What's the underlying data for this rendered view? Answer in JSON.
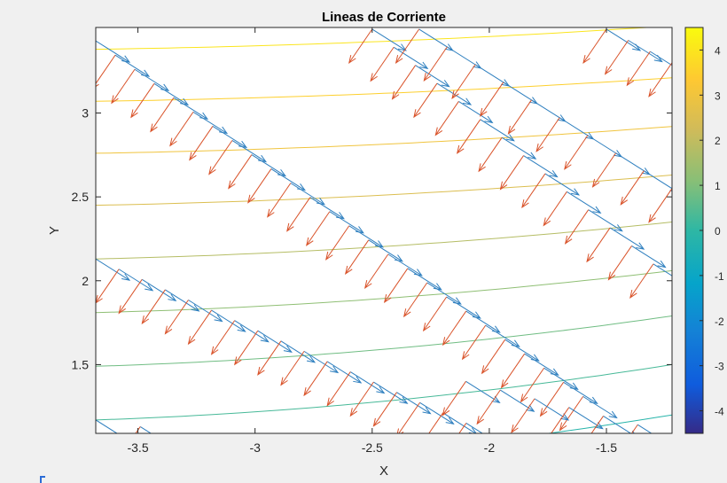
{
  "chart_data": {
    "type": "quiver",
    "title": "Lineas de Corriente",
    "xlabel": "X",
    "ylabel": "Y",
    "xlim": [
      -3.68,
      -1.22
    ],
    "ylim": [
      1.09,
      3.51
    ],
    "xticks": [
      -3.5,
      -3,
      -2.5,
      -2,
      -1.5
    ],
    "xtick_labels": [
      "-3.5",
      "-3",
      "-2.5",
      "-2",
      "-1.5"
    ],
    "yticks": [
      1.5,
      2,
      2.5,
      3
    ],
    "ytick_labels": [
      "1.5",
      "2",
      "2.5",
      "3"
    ],
    "grid": false,
    "colorbar": {
      "range": [
        -4.5,
        4.5
      ],
      "ticks": [
        4,
        3,
        2,
        1,
        0,
        -1,
        -2,
        -3,
        -4
      ],
      "tick_labels": [
        "4",
        "3",
        "2",
        "1",
        "0",
        "-1",
        "-2",
        "-3",
        "-4"
      ],
      "colormap": "parula"
    },
    "contour_lines": [
      {
        "y_left": 3.38,
        "y_right": 3.52,
        "level": 4.0
      },
      {
        "y_left": 3.07,
        "y_right": 3.21,
        "level": 3.5
      },
      {
        "y_left": 2.76,
        "y_right": 2.92,
        "level": 3.0
      },
      {
        "y_left": 2.45,
        "y_right": 2.63,
        "level": 2.5
      },
      {
        "y_left": 2.13,
        "y_right": 2.35,
        "level": 1.8
      },
      {
        "y_left": 1.81,
        "y_right": 2.06,
        "level": 1.2
      },
      {
        "y_left": 1.49,
        "y_right": 1.79,
        "level": 0.8
      },
      {
        "y_left": 1.17,
        "y_right": 1.5,
        "level": 0.3
      },
      {
        "y_left": 0.86,
        "y_right": 1.2,
        "level": -0.2
      }
    ],
    "quiver_bands": [
      {
        "x0": -3.68,
        "y0": 3.43,
        "x1": -1.6,
        "y1": 1.31,
        "n": 26
      },
      {
        "x0": -2.5,
        "y0": 3.5,
        "x1": -1.3,
        "y1": 2.1,
        "n": 14
      },
      {
        "x0": -2.3,
        "y0": 3.5,
        "x1": -1.22,
        "y1": 2.55,
        "n": 10
      },
      {
        "x0": -1.5,
        "y0": 3.5,
        "x1": -1.22,
        "y1": 3.3,
        "n": 4
      },
      {
        "x0": -3.68,
        "y0": 2.13,
        "x1": -2.0,
        "y1": 1.09,
        "n": 18
      },
      {
        "x0": -3.68,
        "y0": 1.17,
        "x1": -3.3,
        "y1": 1.09,
        "n": 3
      },
      {
        "x0": -2.1,
        "y0": 1.4,
        "x1": -1.22,
        "y1": 1.09,
        "n": 7
      }
    ],
    "vector_colors": {
      "blue": "#2e7fbf",
      "red": "#d9532a"
    }
  },
  "colors": {
    "background": "#f0f0f0",
    "axes_bg": "#ffffff",
    "axis": "#262626"
  }
}
